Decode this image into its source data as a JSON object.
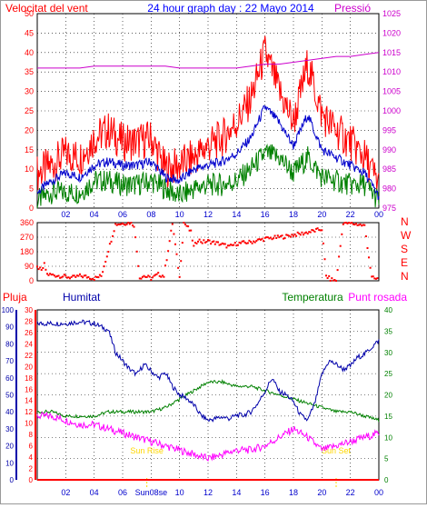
{
  "colors": {
    "wind": "#ff0000",
    "gust": "#ff0000",
    "avg": "#0000cc",
    "min": "#008000",
    "pressure": "#cc00cc",
    "humidity": "#0000aa",
    "temperature": "#008000",
    "dewpoint": "#ff00ff",
    "rain": "#ff0000",
    "grid": "#000000",
    "sun": "#ffd700"
  },
  "chart_data": [
    {
      "type": "line",
      "title": "24 hour graph day : 22 Mayo 2014",
      "ylabel_left": "Velocitat del vent",
      "ylabel_right": "Pressió",
      "x_ticks": [
        "02",
        "04",
        "06",
        "08",
        "10",
        "12",
        "14",
        "16",
        "18",
        "20",
        "22",
        "00"
      ],
      "y_left_ticks": [
        0,
        5,
        10,
        15,
        20,
        25,
        30,
        35,
        40,
        45,
        50
      ],
      "y_left_lim": [
        0,
        50
      ],
      "y_right_ticks": [
        975,
        980,
        985,
        990,
        995,
        1000,
        1005,
        1010,
        1015,
        1020,
        1025
      ],
      "y_right_lim": [
        975,
        1025
      ],
      "series": [
        {
          "name": "Velocitat del vent",
          "x": [
            0,
            1,
            2,
            3,
            4,
            5,
            6,
            7,
            8,
            9,
            10,
            11,
            12,
            13,
            14,
            15,
            16,
            17,
            18,
            19,
            20,
            21,
            22,
            23,
            24
          ],
          "values": [
            9,
            11,
            14,
            13,
            18,
            20,
            17,
            17,
            18,
            10,
            11,
            13,
            16,
            18,
            22,
            28,
            40,
            30,
            22,
            37,
            24,
            20,
            17,
            13,
            6
          ]
        },
        {
          "x": [
            0,
            1,
            2,
            3,
            4,
            5,
            6,
            7,
            8,
            9,
            10,
            11,
            12,
            13,
            14,
            15,
            16,
            17,
            18,
            19,
            20,
            21,
            22,
            23,
            24
          ],
          "values": [
            4,
            7,
            9,
            8,
            11,
            12,
            11,
            11,
            12,
            8,
            7,
            10,
            11,
            12,
            14,
            18,
            26,
            22,
            16,
            24,
            15,
            13,
            11,
            9,
            3
          ]
        },
        {
          "x": [
            0,
            1,
            2,
            3,
            4,
            5,
            6,
            7,
            8,
            9,
            10,
            11,
            12,
            13,
            14,
            15,
            16,
            17,
            18,
            19,
            20,
            21,
            22,
            23,
            24
          ],
          "values": [
            2,
            4,
            4,
            4,
            7,
            7,
            6,
            6,
            7,
            5,
            3,
            5,
            6,
            6,
            7,
            10,
            14,
            13,
            9,
            13,
            8,
            7,
            6,
            6,
            2
          ]
        },
        {
          "name": "Pressió",
          "x": [
            0,
            1,
            2,
            3,
            4,
            5,
            6,
            7,
            8,
            9,
            10,
            11,
            12,
            13,
            14,
            15,
            16,
            17,
            18,
            19,
            20,
            21,
            22,
            23,
            24
          ],
          "values": [
            1011,
            1011,
            1011,
            1011,
            1011.5,
            1011.5,
            1011.5,
            1011.5,
            1011.5,
            1011.5,
            1011,
            1011,
            1011,
            1011,
            1011,
            1011.5,
            1012,
            1012,
            1012.5,
            1013,
            1013.5,
            1014,
            1014,
            1014.5,
            1015
          ]
        }
      ]
    },
    {
      "type": "scatter",
      "title": "",
      "y_ticks": [
        0,
        90,
        180,
        270,
        360
      ],
      "y_lim": [
        0,
        360
      ],
      "direction_labels": [
        "N",
        "W",
        "S",
        "E",
        "N"
      ],
      "series": [
        {
          "x": [
            0.1,
            0.3,
            0.5,
            0.7,
            2.5,
            3.0,
            3.5,
            4.0,
            4.5,
            5.5,
            6.0,
            6.5,
            6.8,
            7.2,
            7.5,
            8.0,
            8.5,
            8.9,
            9.5,
            10.0,
            10.3,
            10.5,
            10.8,
            11.0,
            11.3,
            11.6,
            12.0,
            12.5,
            13.0,
            13.5,
            14.0,
            14.5,
            15.0,
            15.5,
            16.0,
            16.5,
            17.0,
            17.5,
            18.0,
            18.5,
            19.0,
            19.5,
            20.0,
            20.3,
            20.6,
            21.0,
            21.5,
            22.0,
            22.5,
            23.0,
            23.5,
            23.8
          ],
          "values": [
            80,
            60,
            100,
            40,
            20,
            30,
            25,
            15,
            30,
            350,
            355,
            360,
            345,
            20,
            30,
            15,
            40,
            30,
            355,
            20,
            360,
            340,
            300,
            210,
            255,
            240,
            245,
            235,
            225,
            210,
            230,
            235,
            240,
            250,
            260,
            265,
            270,
            275,
            285,
            290,
            300,
            310,
            320,
            30,
            10,
            0,
            360,
            355,
            350,
            340,
            20,
            10
          ]
        }
      ]
    },
    {
      "type": "line",
      "title": "",
      "ylabel_left": "Pluja",
      "ylabel_left2": "Humitat",
      "ylabel_right": "Temperatura",
      "ylabel_right2": "Punt rosada",
      "x_ticks": [
        "02",
        "04",
        "06",
        "Sun08se",
        "10",
        "12",
        "14",
        "16",
        "18",
        "20",
        "22",
        "00"
      ],
      "y_hum_ticks": [
        0,
        10,
        20,
        30,
        40,
        50,
        60,
        70,
        80,
        90,
        100
      ],
      "y_hum_lim": [
        0,
        100
      ],
      "y_rain_ticks": [
        0,
        2,
        4,
        6,
        8,
        10,
        12,
        14,
        16,
        18,
        20,
        22,
        24,
        26,
        28,
        30
      ],
      "y_rain_lim": [
        0,
        30
      ],
      "y_temp_ticks": [
        0,
        5,
        10,
        15,
        20,
        25,
        30,
        35,
        40
      ],
      "y_temp_lim": [
        0,
        40
      ],
      "annotations": [
        {
          "text": "Sun Rise",
          "x": 7.7
        },
        {
          "text": "Sun Set",
          "x": 21.0
        }
      ],
      "series": [
        {
          "name": "Humitat",
          "x": [
            0,
            1,
            2,
            3,
            4,
            5,
            5.5,
            6,
            6.5,
            7,
            7.5,
            8,
            8.5,
            9,
            9.5,
            10,
            10.5,
            11,
            11.5,
            12,
            12.5,
            13,
            13.5,
            14,
            14.5,
            15,
            15.5,
            16,
            16.5,
            17,
            17.5,
            18,
            18.5,
            19,
            19.5,
            20,
            20.5,
            21,
            21.5,
            22,
            22.5,
            23,
            23.5,
            24
          ],
          "values": [
            92,
            92,
            92,
            93,
            92,
            88,
            75,
            70,
            65,
            62,
            68,
            64,
            60,
            63,
            55,
            50,
            48,
            44,
            38,
            35,
            36,
            37,
            36,
            38,
            38,
            40,
            45,
            52,
            60,
            52,
            50,
            46,
            38,
            35,
            45,
            62,
            70,
            68,
            65,
            67,
            72,
            74,
            78,
            82
          ]
        },
        {
          "name": "Temperatura",
          "x": [
            0,
            1,
            2,
            3,
            4,
            5,
            6,
            7,
            8,
            9,
            10,
            11,
            12,
            13,
            14,
            15,
            16,
            17,
            18,
            19,
            20,
            21,
            22,
            23,
            24
          ],
          "values": [
            16,
            16,
            15,
            15,
            15,
            16,
            16,
            16,
            16,
            17,
            19,
            21,
            23,
            23,
            22,
            22,
            21,
            20,
            19,
            18,
            17,
            16,
            16,
            15,
            14
          ]
        },
        {
          "name": "Punt rosada",
          "x": [
            0,
            1,
            2,
            3,
            4,
            5,
            6,
            7,
            8,
            9,
            10,
            11,
            12,
            13,
            14,
            15,
            16,
            17,
            18,
            19,
            20,
            21,
            22,
            23,
            24
          ],
          "values": [
            15,
            15,
            14,
            13,
            13,
            12,
            11,
            10,
            9,
            8,
            7,
            6,
            5,
            6,
            7,
            7,
            8,
            10,
            12,
            10,
            7,
            8,
            9,
            10,
            11
          ]
        },
        {
          "name": "Pluja",
          "x": [
            0,
            24
          ],
          "values": [
            0,
            0
          ]
        }
      ]
    }
  ]
}
